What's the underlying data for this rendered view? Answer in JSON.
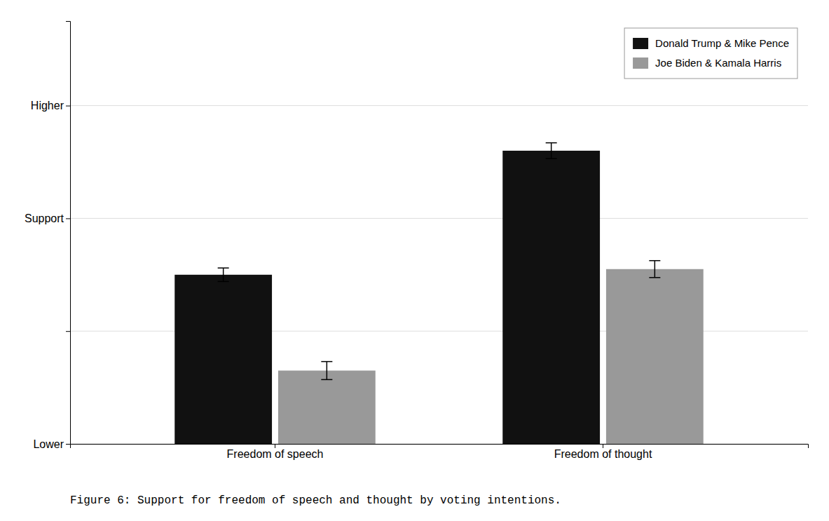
{
  "chart_data": {
    "type": "bar",
    "title": "Figure 6: Support for freedom of speech and thought by voting intentions.",
    "categories": [
      "Freedom of speech",
      "Freedom of thought"
    ],
    "series": [
      {
        "name": "Donald Trump & Mike Pence",
        "color": "#111111",
        "values": [
          3.0,
          5.2
        ],
        "errors": [
          0.12,
          0.14
        ]
      },
      {
        "name": "Joe Biden & Kamala Harris",
        "color": "#999999",
        "values": [
          1.3,
          3.1
        ],
        "errors": [
          0.16,
          0.15
        ]
      }
    ],
    "ylim": [
      0.0,
      7.5
    ],
    "yticks": [
      {
        "value": 0.0,
        "label": "Lower"
      },
      {
        "value": 2.0,
        "label": null
      },
      {
        "value": 4.0,
        "label": "Support"
      },
      {
        "value": 6.0,
        "label": "Higher"
      }
    ],
    "grid": true,
    "legend": "upper right"
  }
}
